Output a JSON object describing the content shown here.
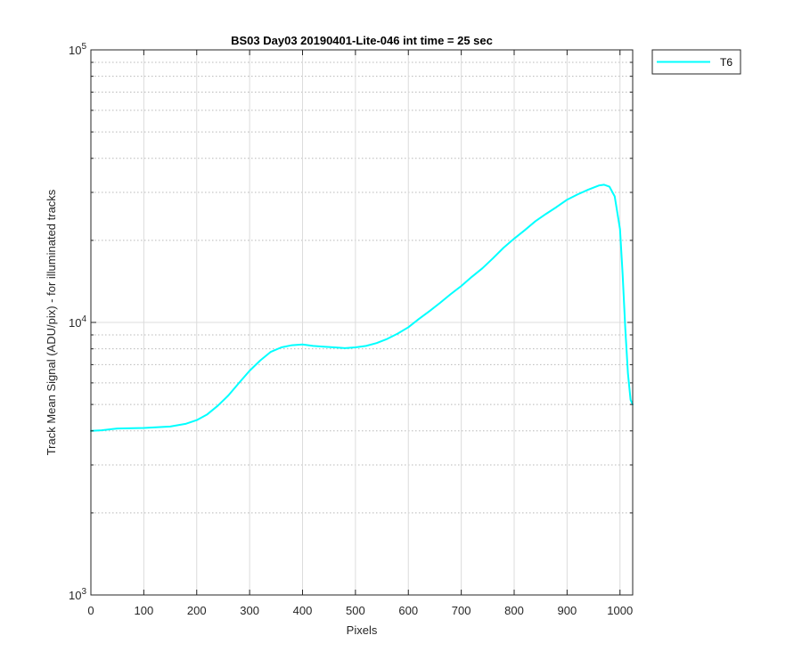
{
  "chart_data": {
    "type": "line",
    "title": "BS03 Day03 20190401-Lite-046 int time = 25 sec",
    "xlabel": "Pixels",
    "ylabel": "Track Mean Signal (ADU/pix) - for illuminated tracks",
    "xlim": [
      0,
      1024
    ],
    "ylim": [
      1000,
      100000
    ],
    "yscale": "log",
    "xticks": [
      0,
      100,
      200,
      300,
      400,
      500,
      600,
      700,
      800,
      900,
      1000
    ],
    "xtick_labels": [
      "0",
      "100",
      "200",
      "300",
      "400",
      "500",
      "600",
      "700",
      "800",
      "900",
      "1000"
    ],
    "yticks": [
      1000,
      10000,
      100000
    ],
    "ytick_labels": [
      {
        "base": "10",
        "exp": "3"
      },
      {
        "base": "10",
        "exp": "4"
      },
      {
        "base": "10",
        "exp": "5"
      }
    ],
    "grid": true,
    "minor_grid": true,
    "legend_position": "outside-top-right",
    "series": [
      {
        "name": "T6",
        "color": "#00ffff",
        "x": [
          0,
          20,
          50,
          100,
          150,
          180,
          200,
          220,
          240,
          260,
          280,
          300,
          320,
          340,
          360,
          380,
          400,
          420,
          440,
          460,
          480,
          500,
          520,
          540,
          560,
          580,
          600,
          620,
          640,
          660,
          680,
          700,
          720,
          740,
          760,
          780,
          800,
          820,
          840,
          860,
          880,
          900,
          920,
          940,
          960,
          970,
          980,
          990,
          1000,
          1005,
          1010,
          1015,
          1020,
          1024
        ],
        "values": [
          4000,
          4020,
          4080,
          4100,
          4150,
          4250,
          4380,
          4600,
          4950,
          5400,
          6000,
          6650,
          7250,
          7800,
          8100,
          8250,
          8300,
          8200,
          8150,
          8100,
          8050,
          8100,
          8200,
          8400,
          8700,
          9100,
          9600,
          10300,
          11000,
          11800,
          12700,
          13600,
          14700,
          15800,
          17200,
          18800,
          20300,
          21800,
          23500,
          25000,
          26500,
          28200,
          29500,
          30700,
          31800,
          32000,
          31500,
          29000,
          22000,
          15000,
          9500,
          6500,
          5200,
          5000
        ]
      }
    ]
  }
}
